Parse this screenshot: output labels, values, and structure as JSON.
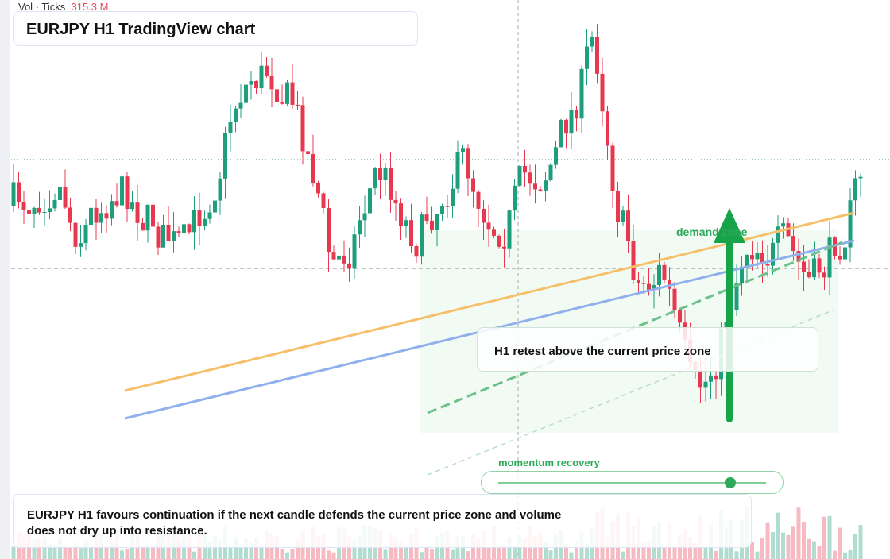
{
  "header": {
    "volume_label": "Vol · Ticks",
    "volume_value": "315.3 M",
    "title": "EURJPY H1 TradingView chart"
  },
  "annotations": {
    "zone": "demand zone",
    "retest": "H1 retest above the current price zone",
    "momentum": "momentum recovery"
  },
  "footer": {
    "text": "EURJPY H1 favours continuation if the next candle defends the current price zone and volume does not dry up into resistance."
  }
}
